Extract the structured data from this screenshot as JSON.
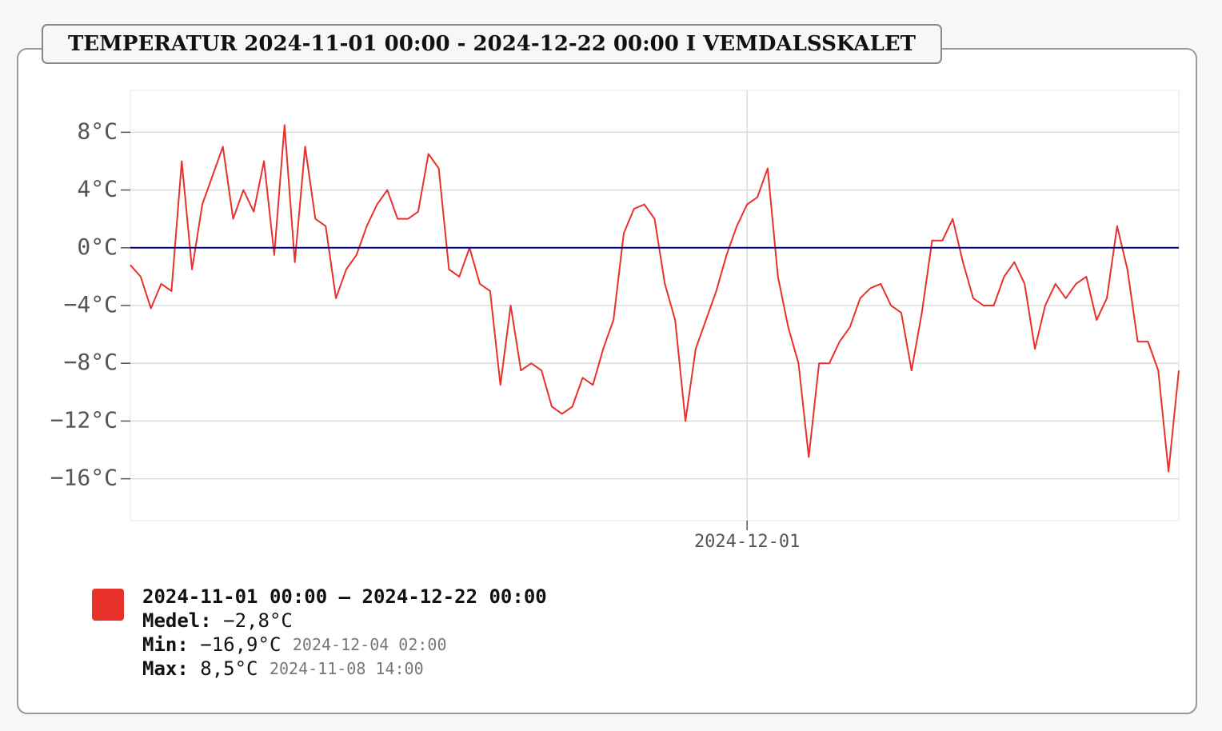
{
  "chart_data": {
    "type": "line",
    "title": "TEMPERATUR 2024-11-01 00:00 - 2024-12-22 00:00 I VEMDALSSKALET",
    "x": [
      "2024-11-01 00:00",
      "2024-11-01 12:00",
      "2024-11-02 00:00",
      "2024-11-02 12:00",
      "2024-11-03 00:00",
      "2024-11-03 12:00",
      "2024-11-04 00:00",
      "2024-11-04 12:00",
      "2024-11-05 00:00",
      "2024-11-05 12:00",
      "2024-11-06 00:00",
      "2024-11-06 12:00",
      "2024-11-07 00:00",
      "2024-11-07 12:00",
      "2024-11-08 00:00",
      "2024-11-08 12:00",
      "2024-11-09 00:00",
      "2024-11-09 12:00",
      "2024-11-10 00:00",
      "2024-11-10 12:00",
      "2024-11-11 00:00",
      "2024-11-11 12:00",
      "2024-11-12 00:00",
      "2024-11-12 12:00",
      "2024-11-13 00:00",
      "2024-11-13 12:00",
      "2024-11-14 00:00",
      "2024-11-14 12:00",
      "2024-11-15 00:00",
      "2024-11-15 12:00",
      "2024-11-16 00:00",
      "2024-11-16 12:00",
      "2024-11-17 00:00",
      "2024-11-17 12:00",
      "2024-11-18 00:00",
      "2024-11-18 12:00",
      "2024-11-19 00:00",
      "2024-11-19 12:00",
      "2024-11-20 00:00",
      "2024-11-20 12:00",
      "2024-11-21 00:00",
      "2024-11-21 12:00",
      "2024-11-22 00:00",
      "2024-11-22 12:00",
      "2024-11-23 00:00",
      "2024-11-23 12:00",
      "2024-11-24 00:00",
      "2024-11-24 12:00",
      "2024-11-25 00:00",
      "2024-11-25 12:00",
      "2024-11-26 00:00",
      "2024-11-26 12:00",
      "2024-11-27 00:00",
      "2024-11-27 12:00",
      "2024-11-28 00:00",
      "2024-11-28 12:00",
      "2024-11-29 00:00",
      "2024-11-29 12:00",
      "2024-11-30 00:00",
      "2024-11-30 12:00",
      "2024-12-01 00:00",
      "2024-12-01 12:00",
      "2024-12-02 00:00",
      "2024-12-02 12:00",
      "2024-12-03 00:00",
      "2024-12-03 12:00",
      "2024-12-04 00:00",
      "2024-12-04 12:00",
      "2024-12-05 00:00",
      "2024-12-05 12:00",
      "2024-12-06 00:00",
      "2024-12-06 12:00",
      "2024-12-07 00:00",
      "2024-12-07 12:00",
      "2024-12-08 00:00",
      "2024-12-08 12:00",
      "2024-12-09 00:00",
      "2024-12-09 12:00",
      "2024-12-10 00:00",
      "2024-12-10 12:00",
      "2024-12-11 00:00",
      "2024-12-11 12:00",
      "2024-12-12 00:00",
      "2024-12-12 12:00",
      "2024-12-13 00:00",
      "2024-12-13 12:00",
      "2024-12-14 00:00",
      "2024-12-14 12:00",
      "2024-12-15 00:00",
      "2024-12-15 12:00",
      "2024-12-16 00:00",
      "2024-12-16 12:00",
      "2024-12-17 00:00",
      "2024-12-17 12:00",
      "2024-12-18 00:00",
      "2024-12-18 12:00",
      "2024-12-19 00:00",
      "2024-12-19 12:00",
      "2024-12-20 00:00",
      "2024-12-20 12:00",
      "2024-12-21 00:00",
      "2024-12-21 12:00",
      "2024-12-22 00:00"
    ],
    "series": [
      {
        "name": "2024-11-01 00:00 – 2024-12-22 00:00",
        "color": "#e8312a",
        "values": [
          -1.2,
          -2.0,
          -4.2,
          -2.5,
          -3.0,
          6.0,
          -1.5,
          3.0,
          5.0,
          7.0,
          2.0,
          4.0,
          2.5,
          6.0,
          -0.5,
          8.5,
          -1.0,
          7.0,
          2.0,
          1.5,
          -3.5,
          -1.5,
          -0.5,
          1.5,
          3.0,
          4.0,
          2.0,
          2.0,
          2.5,
          6.5,
          5.5,
          -1.5,
          -2.0,
          0,
          -2.5,
          -3.0,
          -9.5,
          -4.0,
          -8.5,
          -8.0,
          -8.5,
          -11.0,
          -11.5,
          -11.0,
          -9.0,
          -9.5,
          -7.0,
          -5.0,
          1.0,
          2.7,
          3.0,
          2.0,
          -2.5,
          -5.0,
          -12.0,
          -7.0,
          -5.0,
          -3.0,
          -0.5,
          1.5,
          3.0,
          3.5,
          5.5,
          -2.0,
          -5.5,
          -8.0,
          -14.5,
          -8.0,
          -8.0,
          -6.5,
          -5.5,
          -3.5,
          -2.8,
          -2.5,
          -4.0,
          -4.5,
          -8.5,
          -4.5,
          0.5,
          0.5,
          2.0,
          -1.0,
          -3.5,
          -4.0,
          -4.0,
          -2.0,
          -1.0,
          -2.5,
          -7.0,
          -4.0,
          -2.5,
          -3.5,
          -2.5,
          -2.0,
          -5.0,
          -3.5,
          1.5,
          -1.5,
          -6.5,
          -6.5,
          -8.5,
          -15.5,
          -8.5
        ]
      }
    ],
    "xlim": [
      "2024-11-01 00:00",
      "2024-12-22 00:00"
    ],
    "xticks": [
      "2024-12-01"
    ],
    "ylim": [
      -18.9,
      10.9
    ],
    "yticks": [
      {
        "value": 8,
        "label": "8°C"
      },
      {
        "value": 4,
        "label": "4°C"
      },
      {
        "value": 0,
        "label": "0°C"
      },
      {
        "value": -4,
        "label": "−4°C"
      },
      {
        "value": -8,
        "label": "−8°C"
      },
      {
        "value": -12,
        "label": "−12°C"
      },
      {
        "value": -16,
        "label": "−16°C"
      }
    ],
    "grid": true,
    "zero_line_color": "#00008b",
    "legend": {
      "mean_label": "Medel:",
      "mean": "−2,8°C",
      "min_label": "Min:",
      "min": "−16,9°C",
      "min_time": "2024-12-04 02:00",
      "max_label": "Max:",
      "max": "8,5°C",
      "max_time": "2024-11-08 14:00"
    }
  }
}
